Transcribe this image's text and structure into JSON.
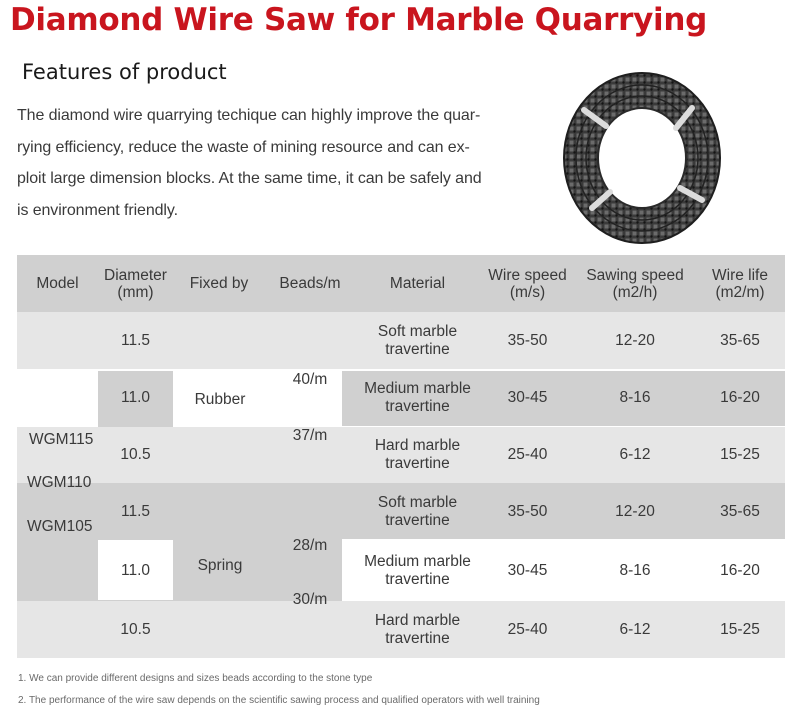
{
  "title": "Diamond Wire Saw for  Marble Quarrying",
  "section_heading": "Features of product",
  "intro_lines": [
    "The  diamond wire quarrying techique can highly improve the quar-",
    "rying efficiency, reduce the waste of mining resource and can ex-",
    "ploit large dimension blocks. At the same time, it can be safely and",
    "is environment friendly."
  ],
  "product_image": "coiled-diamond-wire-saw",
  "colors": {
    "title": "#c9151e",
    "band_dark": "#d0d0d0",
    "band_light": "#e6e6e6",
    "text": "#3a3a3a"
  },
  "table": {
    "headers": {
      "model": "Model",
      "diameter": [
        "Diameter",
        "(mm)"
      ],
      "fixed_by": "Fixed by",
      "beads": "Beads/m",
      "material": "Material",
      "wire_speed": [
        "Wire speed",
        "(m/s)"
      ],
      "sawing_speed": [
        "Sawing speed",
        "(m2/h)"
      ],
      "wire_life": [
        "Wire life",
        "(m2/m)"
      ]
    },
    "models": [
      "WGM115",
      "WGM110",
      "WGM105"
    ],
    "groups": [
      {
        "fixed_by": "Rubber",
        "beads": [
          "40/m",
          "37/m"
        ],
        "rows": [
          {
            "diameter": "11.5",
            "material": [
              "Soft marble",
              "travertine"
            ],
            "wire_speed": "35-50",
            "sawing_speed": "12-20",
            "wire_life": "35-65"
          },
          {
            "diameter": "11.0",
            "material": [
              "Medium marble",
              "travertine"
            ],
            "wire_speed": "30-45",
            "sawing_speed": "8-16",
            "wire_life": "16-20"
          },
          {
            "diameter": "10.5",
            "material": [
              "Hard marble",
              "travertine"
            ],
            "wire_speed": "25-40",
            "sawing_speed": "6-12",
            "wire_life": "15-25"
          }
        ]
      },
      {
        "fixed_by": "Spring",
        "beads": [
          "28/m",
          "30/m"
        ],
        "rows": [
          {
            "diameter": "11.5",
            "material": [
              "Soft marble",
              "travertine"
            ],
            "wire_speed": "35-50",
            "sawing_speed": "12-20",
            "wire_life": "35-65"
          },
          {
            "diameter": "11.0",
            "material": [
              "Medium marble",
              "travertine"
            ],
            "wire_speed": "30-45",
            "sawing_speed": "8-16",
            "wire_life": "16-20"
          },
          {
            "diameter": "10.5",
            "material": [
              "Hard marble",
              "travertine"
            ],
            "wire_speed": "25-40",
            "sawing_speed": "6-12",
            "wire_life": "15-25"
          }
        ]
      }
    ]
  },
  "notes": [
    "1. We can provide different designs and sizes beads according to the stone type",
    "2. The performance of the wire saw depends on the scientific sawing process and qualified operators with well training"
  ]
}
